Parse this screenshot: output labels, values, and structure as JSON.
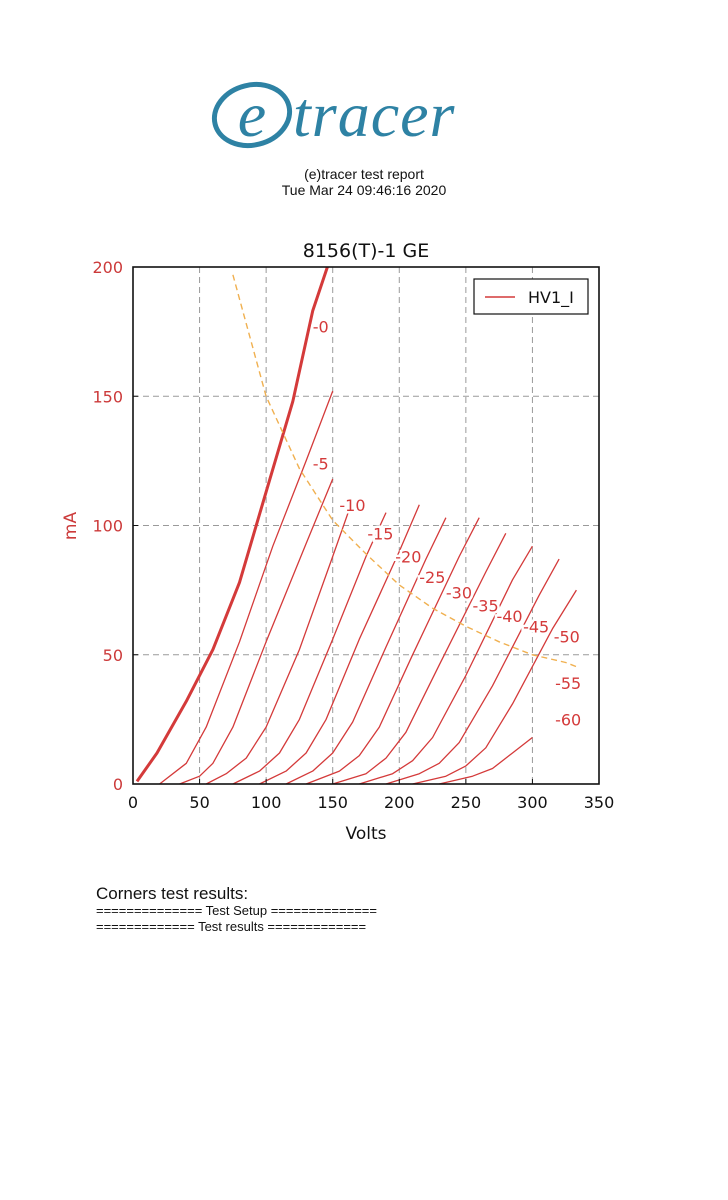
{
  "logo": {
    "mark": "e",
    "text": "tracer",
    "color": "#2e82a4"
  },
  "report": {
    "title": "(e)tracer test report",
    "date": "Tue Mar 24 09:46:16 2020"
  },
  "chart_data": {
    "type": "line",
    "title": "8156(T)-1 GE",
    "xlabel": "Volts",
    "ylabel": "mA",
    "xlim": [
      0,
      350
    ],
    "ylim": [
      0,
      200
    ],
    "xticks": [
      0,
      50,
      100,
      150,
      200,
      250,
      300,
      350
    ],
    "yticks": [
      0,
      50,
      100,
      150,
      200
    ],
    "grid": true,
    "legend": {
      "position": "top-right",
      "entries": [
        "HV1_I"
      ]
    },
    "colors": {
      "curve": "#d43a3a",
      "load_line": "#f0b050",
      "axis_text": "#cc3a3a"
    },
    "series": [
      {
        "label": "-0",
        "bold": true,
        "points": [
          [
            3,
            1
          ],
          [
            18,
            12
          ],
          [
            40,
            32
          ],
          [
            60,
            52
          ],
          [
            80,
            78
          ],
          [
            100,
            113
          ],
          [
            120,
            148
          ],
          [
            135,
            183
          ],
          [
            146,
            200
          ]
        ]
      },
      {
        "label": "-5",
        "points": [
          [
            20,
            0
          ],
          [
            40,
            8
          ],
          [
            55,
            22
          ],
          [
            80,
            55
          ],
          [
            105,
            92
          ],
          [
            130,
            125
          ],
          [
            150,
            152
          ]
        ]
      },
      {
        "label": "-10",
        "points": [
          [
            35,
            0
          ],
          [
            50,
            3
          ],
          [
            60,
            8
          ],
          [
            75,
            22
          ],
          [
            100,
            55
          ],
          [
            130,
            93
          ],
          [
            150,
            118
          ]
        ]
      },
      {
        "label": "-15",
        "points": [
          [
            55,
            0
          ],
          [
            70,
            4
          ],
          [
            85,
            10
          ],
          [
            100,
            22
          ],
          [
            125,
            52
          ],
          [
            150,
            88
          ],
          [
            165,
            110
          ]
        ]
      },
      {
        "label": "-20",
        "points": [
          [
            75,
            0
          ],
          [
            95,
            5
          ],
          [
            110,
            12
          ],
          [
            125,
            25
          ],
          [
            150,
            56
          ],
          [
            175,
            88
          ],
          [
            190,
            105
          ]
        ]
      },
      {
        "label": "-25",
        "points": [
          [
            95,
            0
          ],
          [
            115,
            5
          ],
          [
            130,
            12
          ],
          [
            145,
            25
          ],
          [
            170,
            56
          ],
          [
            200,
            90
          ],
          [
            215,
            108
          ]
        ]
      },
      {
        "label": "-30",
        "points": [
          [
            115,
            0
          ],
          [
            135,
            5
          ],
          [
            150,
            12
          ],
          [
            165,
            24
          ],
          [
            190,
            53
          ],
          [
            220,
            87
          ],
          [
            235,
            103
          ]
        ]
      },
      {
        "label": "-35",
        "points": [
          [
            130,
            0
          ],
          [
            155,
            5
          ],
          [
            170,
            11
          ],
          [
            185,
            22
          ],
          [
            210,
            50
          ],
          [
            245,
            88
          ],
          [
            260,
            103
          ]
        ]
      },
      {
        "label": "-40",
        "points": [
          [
            150,
            0
          ],
          [
            175,
            4
          ],
          [
            190,
            10
          ],
          [
            205,
            20
          ],
          [
            230,
            46
          ],
          [
            265,
            82
          ],
          [
            280,
            97
          ]
        ]
      },
      {
        "label": "-45",
        "points": [
          [
            170,
            0
          ],
          [
            195,
            4
          ],
          [
            210,
            9
          ],
          [
            225,
            18
          ],
          [
            250,
            42
          ],
          [
            285,
            79
          ],
          [
            300,
            92
          ]
        ]
      },
      {
        "label": "-50",
        "points": [
          [
            190,
            0
          ],
          [
            215,
            4
          ],
          [
            230,
            8
          ],
          [
            245,
            16
          ],
          [
            270,
            38
          ],
          [
            305,
            73
          ],
          [
            320,
            87
          ]
        ]
      },
      {
        "label": "-55",
        "points": [
          [
            210,
            0
          ],
          [
            235,
            3
          ],
          [
            250,
            7
          ],
          [
            265,
            14
          ],
          [
            285,
            31
          ],
          [
            315,
            60
          ],
          [
            333,
            75
          ]
        ]
      },
      {
        "label": "-60",
        "points": [
          [
            230,
            0
          ],
          [
            255,
            3
          ],
          [
            270,
            6
          ],
          [
            285,
            12
          ],
          [
            300,
            18
          ]
        ]
      }
    ],
    "load_line": [
      [
        75,
        197
      ],
      [
        100,
        150
      ],
      [
        125,
        122
      ],
      [
        150,
        102
      ],
      [
        175,
        89
      ],
      [
        200,
        77
      ],
      [
        225,
        68
      ],
      [
        250,
        61
      ],
      [
        275,
        55
      ],
      [
        300,
        50
      ],
      [
        325,
        47
      ],
      [
        335,
        45
      ]
    ],
    "curve_labels": [
      {
        "text": "-0",
        "x": 135,
        "y": 177
      },
      {
        "text": "-5",
        "x": 135,
        "y": 124
      },
      {
        "text": "-10",
        "x": 155,
        "y": 108
      },
      {
        "text": "-15",
        "x": 176,
        "y": 97
      },
      {
        "text": "-20",
        "x": 197,
        "y": 88
      },
      {
        "text": "-25",
        "x": 215,
        "y": 80
      },
      {
        "text": "-30",
        "x": 235,
        "y": 74
      },
      {
        "text": "-35",
        "x": 255,
        "y": 69
      },
      {
        "text": "-40",
        "x": 273,
        "y": 65
      },
      {
        "text": "-45",
        "x": 293,
        "y": 61
      },
      {
        "text": "-50",
        "x": 316,
        "y": 57
      },
      {
        "text": "-55",
        "x": 317,
        "y": 39
      },
      {
        "text": "-60",
        "x": 317,
        "y": 25
      }
    ]
  },
  "results": {
    "heading": "Corners test results:",
    "setup_line": "============== Test Setup ==============",
    "results_line": "============= Test results ============="
  }
}
